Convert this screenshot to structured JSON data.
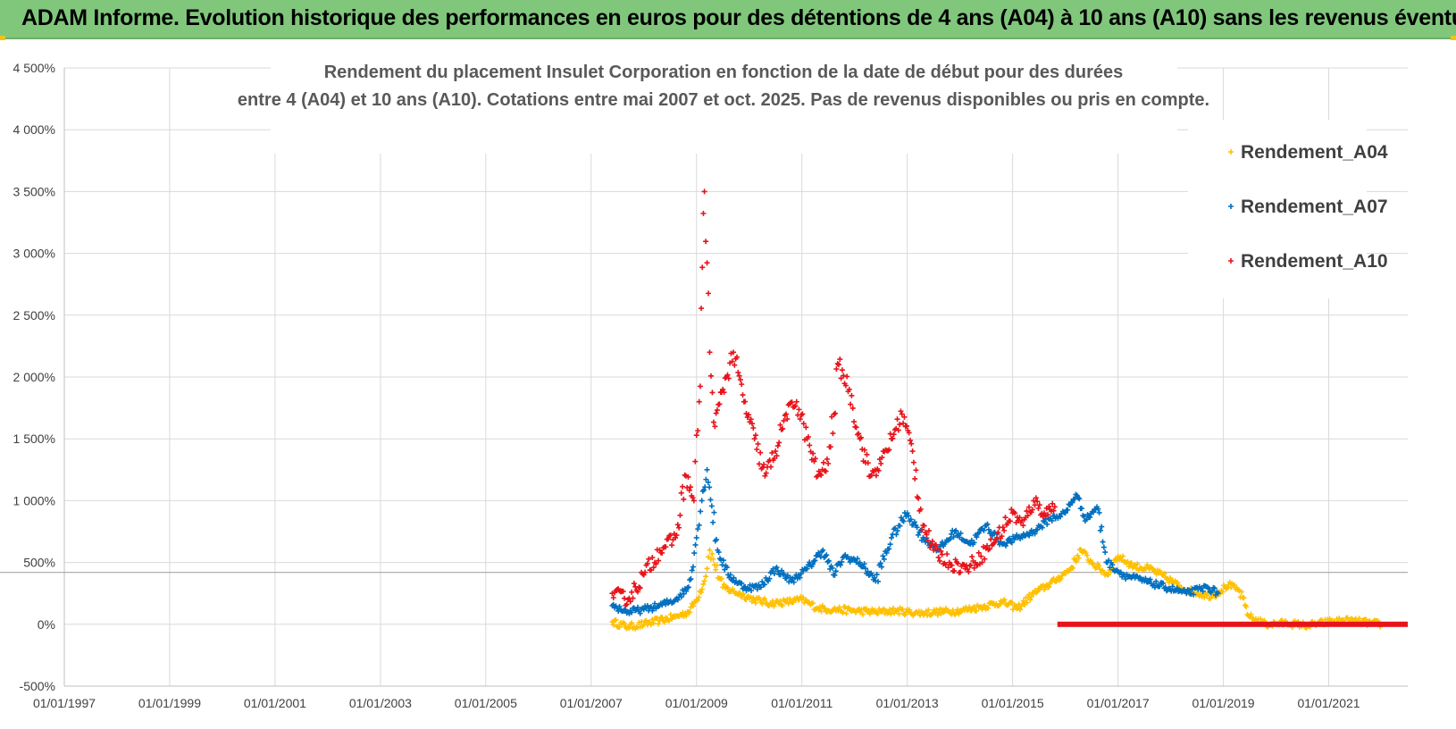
{
  "banner": {
    "title": "ADAM Informe. Evolution historique des performances en euros pour des détentions de 4 ans (A04) à 10 ans (A10) sans les revenus éventuels"
  },
  "colors": {
    "banner": "#80c77c",
    "a04": "#ffc000",
    "a07": "#0070c0",
    "a10": "#e8141b",
    "grid": "#d9d9d9"
  },
  "chart_data": {
    "type": "scatter",
    "title_lines": [
      "Rendement du placement Insulet Corporation en fonction de la date de début pour des durées",
      "entre 4 (A04) et 10 ans (A10). Cotations entre mai 2007 et oct. 2025. Pas de revenus disponibles ou pris en compte."
    ],
    "y_ticks": [
      "4 500%",
      "4 000%",
      "3 500%",
      "3 000%",
      "2 500%",
      "2 000%",
      "1 500%",
      "1 000%",
      "500%",
      "0%",
      "-500%"
    ],
    "ylim": [
      -500,
      4500
    ],
    "x_ticks": [
      "01/01/1997",
      "01/01/1999",
      "01/01/2001",
      "01/01/2003",
      "01/01/2005",
      "01/01/2007",
      "01/01/2009",
      "01/01/2011",
      "01/01/2013",
      "01/01/2015",
      "01/01/2017",
      "01/01/2019",
      "01/01/2021"
    ],
    "xlim": [
      1997.0,
      2022.5
    ],
    "reference_line_y": 420,
    "series": [
      {
        "name": "Rendement_A04",
        "x": [
          2007.4,
          2007.7,
          2008.0,
          2008.3,
          2008.6,
          2008.85,
          2009.0,
          2009.15,
          2009.25,
          2009.5,
          2009.8,
          2010.1,
          2010.4,
          2010.7,
          2011.0,
          2011.3,
          2011.6,
          2012.0,
          2012.4,
          2012.8,
          2013.2,
          2013.6,
          2014.0,
          2014.4,
          2014.8,
          2015.1,
          2015.4,
          2015.8,
          2016.1,
          2016.3,
          2016.5,
          2016.8,
          2017.0,
          2017.3,
          2017.6,
          2017.9,
          2018.2,
          2018.5,
          2018.8,
          2019.1,
          2019.3,
          2019.5,
          2019.8,
          2020.2,
          2020.6,
          2021.0,
          2021.4,
          2021.8,
          2022.0
        ],
        "y": [
          20,
          -20,
          0,
          30,
          60,
          100,
          200,
          350,
          600,
          300,
          250,
          200,
          170,
          180,
          200,
          130,
          120,
          110,
          100,
          110,
          90,
          100,
          110,
          140,
          180,
          130,
          250,
          350,
          450,
          600,
          500,
          400,
          550,
          470,
          450,
          380,
          300,
          250,
          230,
          320,
          270,
          60,
          0,
          10,
          -10,
          20,
          30,
          10,
          0
        ]
      },
      {
        "name": "Rendement_A07",
        "x": [
          2007.4,
          2007.7,
          2008.0,
          2008.3,
          2008.6,
          2008.85,
          2009.0,
          2009.1,
          2009.2,
          2009.4,
          2009.6,
          2009.9,
          2010.2,
          2010.5,
          2010.8,
          2011.1,
          2011.4,
          2011.6,
          2011.8,
          2012.1,
          2012.4,
          2012.7,
          2013.0,
          2013.3,
          2013.6,
          2013.9,
          2014.2,
          2014.5,
          2014.8,
          2015.1,
          2015.4,
          2015.7,
          2016.0,
          2016.2,
          2016.4,
          2016.6,
          2016.8,
          2017.1,
          2017.5,
          2017.9,
          2018.3,
          2018.7,
          2018.9
        ],
        "y": [
          150,
          100,
          120,
          150,
          200,
          300,
          700,
          1000,
          1250,
          600,
          400,
          300,
          300,
          450,
          350,
          450,
          600,
          400,
          550,
          500,
          350,
          700,
          900,
          700,
          600,
          750,
          650,
          800,
          650,
          700,
          750,
          850,
          900,
          1050,
          850,
          950,
          500,
          400,
          350,
          300,
          250,
          300,
          250
        ]
      },
      {
        "name": "Rendement_A10",
        "x": [
          2007.4,
          2007.7,
          2008.0,
          2008.3,
          2008.6,
          2008.8,
          2008.95,
          2009.05,
          2009.15,
          2009.25,
          2009.35,
          2009.5,
          2009.7,
          2009.9,
          2010.1,
          2010.3,
          2010.5,
          2010.7,
          2010.9,
          2011.1,
          2011.3,
          2011.5,
          2011.7,
          2011.9,
          2012.1,
          2012.3,
          2012.5,
          2012.7,
          2012.9,
          2013.1,
          2013.3,
          2013.5,
          2013.8,
          2014.1,
          2014.4,
          2014.7,
          2015.0,
          2015.2,
          2015.4,
          2015.6,
          2015.8
        ],
        "y": [
          250,
          200,
          400,
          600,
          700,
          1200,
          1000,
          1800,
          3500,
          2200,
          1600,
          1900,
          2200,
          1800,
          1500,
          1200,
          1400,
          1700,
          1800,
          1500,
          1200,
          1300,
          2100,
          1900,
          1500,
          1200,
          1300,
          1500,
          1700,
          1400,
          800,
          600,
          500,
          450,
          550,
          700,
          900,
          800,
          1000,
          900,
          950
        ]
      },
      {
        "name": "Rendement_A10",
        "x_range": [
          2015.85,
          2022.5
        ],
        "y": 0
      }
    ],
    "legend": [
      "Rendement_A04",
      "Rendement_A07",
      "Rendement_A10"
    ],
    "legend_position": "top-right"
  }
}
